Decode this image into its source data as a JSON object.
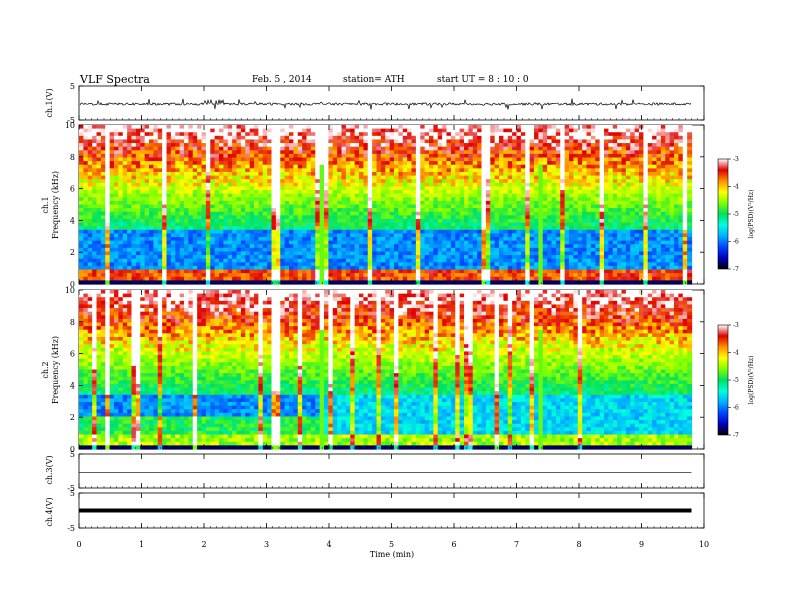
{
  "header": {
    "title": "VLF  Spectra",
    "date": "Feb. 5  , 2014",
    "station": "station= ATH",
    "start_ut": "start  UT  =   8  : 10 : 0"
  },
  "chart_data": [
    {
      "type": "line",
      "panel": "ch1-waveform",
      "ylabel": "ch.1(V)",
      "ylim": [
        -5,
        5
      ],
      "y_ticks": [
        "5",
        "-5"
      ],
      "xlim": [
        0,
        9.8
      ],
      "series": [
        {
          "values_summary": "noisy waveform around 0 V with spikes up to about ±1.5 V"
        }
      ]
    },
    {
      "type": "heatmap",
      "panel": "ch1-spectrogram",
      "ylabel_1": "ch.1",
      "ylabel_2": "Frequency  (kHz)",
      "ylim": [
        0,
        10
      ],
      "y_ticks": [
        "0",
        "2",
        "4",
        "6",
        "8",
        "10"
      ],
      "colorbar": {
        "label": "log(PSD)(V²/Hz)",
        "range": [
          -7,
          -3
        ],
        "ticks": [
          "-3",
          "-4",
          "-5",
          "-6",
          "-7"
        ]
      }
    },
    {
      "type": "heatmap",
      "panel": "ch2-spectrogram",
      "ylabel_1": "ch.2",
      "ylabel_2": "Frequency  (kHz)",
      "ylim": [
        0,
        10
      ],
      "y_ticks": [
        "0",
        "2",
        "4",
        "6",
        "8",
        "10"
      ],
      "colorbar": {
        "label": "log(PSD)(V²/Hz)",
        "range": [
          -7,
          -3
        ],
        "ticks": [
          "-3",
          "-4",
          "-5",
          "-6",
          "-7"
        ]
      }
    },
    {
      "type": "line",
      "panel": "ch3-waveform",
      "ylabel": "ch.3(V)",
      "ylim": [
        -5,
        5
      ],
      "y_ticks": [
        "5",
        "-5"
      ],
      "series": [
        {
          "values_summary": "flat at about -0.5 V"
        }
      ]
    },
    {
      "type": "line",
      "panel": "ch4-waveform",
      "ylabel": "ch.4(V)",
      "ylim": [
        -5,
        5
      ],
      "y_ticks": [
        "5",
        "-5"
      ],
      "series": [
        {
          "values_summary": "thick flat line at about 0 V"
        }
      ]
    }
  ],
  "x_axis": {
    "label": "Time  (min)",
    "range": [
      0,
      10
    ],
    "ticks": [
      "0",
      "1",
      "2",
      "3",
      "4",
      "5",
      "6",
      "7",
      "8",
      "9",
      "10"
    ],
    "data_end_min": 9.8
  },
  "colors": {
    "scale": [
      "#000000",
      "#0000c0",
      "#0044ff",
      "#00b0ff",
      "#00ffe0",
      "#00e060",
      "#80ff00",
      "#ffff00",
      "#ff9000",
      "#e00000",
      "#ffffff"
    ]
  }
}
